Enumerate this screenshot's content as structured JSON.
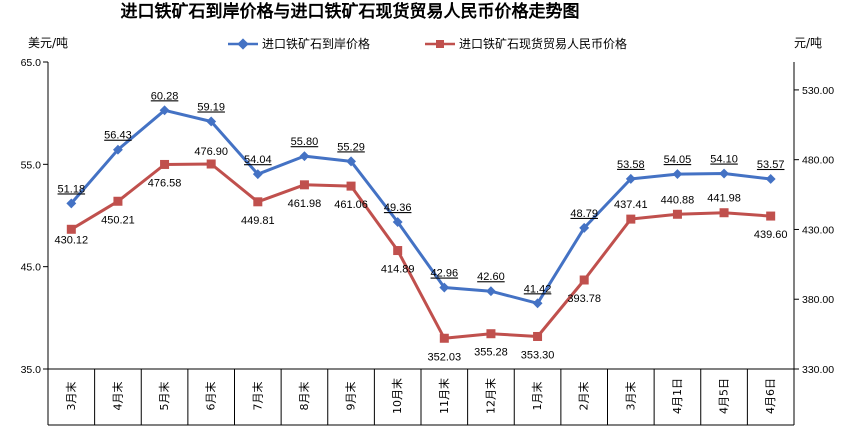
{
  "chart_data": {
    "type": "line",
    "title": "进口铁矿石到岸价格与进口铁矿石现货贸易人民币价格走势图",
    "y_left_unit": "美元/吨",
    "y_right_unit": "元/吨",
    "categories": [
      "3月末",
      "4月末",
      "5月末",
      "6月末",
      "7月末",
      "8月末",
      "9月末",
      "10月末",
      "11月末",
      "12月末",
      "1月末",
      "2月末",
      "3月末",
      "4月1日",
      "4月5日",
      "4月6日"
    ],
    "y_left": {
      "min": 35,
      "max": 65,
      "ticks": [
        "35.0",
        "45.0",
        "55.0",
        "65.0"
      ]
    },
    "y_right": {
      "min": 330,
      "max": 550,
      "ticks": [
        "330.00",
        "380.00",
        "430.00",
        "480.00",
        "530.00"
      ]
    },
    "legend_position": "top",
    "grid": false,
    "series": [
      {
        "name": "进口铁矿石到岸价格",
        "axis": "left",
        "color": "#4472C4",
        "marker": "diamond",
        "values": [
          51.18,
          56.43,
          60.28,
          59.19,
          54.04,
          55.8,
          55.29,
          49.36,
          42.96,
          42.6,
          41.42,
          48.79,
          53.58,
          54.05,
          54.1,
          53.57
        ],
        "labels": [
          "51.18",
          "56.43",
          "60.28",
          "59.19",
          "54.04",
          "55.80",
          "55.29",
          "49.36",
          "42.96",
          "42.60",
          "41.42",
          "48.79",
          "53.58",
          "54.05",
          "54.10",
          "53.57"
        ]
      },
      {
        "name": "进口铁矿石现货贸易人民币价格",
        "axis": "right",
        "color": "#C0504D",
        "marker": "square",
        "values": [
          430.12,
          450.21,
          476.58,
          476.9,
          449.81,
          461.98,
          461.06,
          414.89,
          352.03,
          355.28,
          353.3,
          393.78,
          437.41,
          440.88,
          441.98,
          439.6
        ],
        "labels": [
          "430.12",
          "450.21",
          "476.58",
          "476.90",
          "449.81",
          "461.98",
          "461.06",
          "414.89",
          "352.03",
          "355.28",
          "353.30",
          "393.78",
          "437.41",
          "440.88",
          "441.98",
          "439.60"
        ]
      }
    ]
  }
}
